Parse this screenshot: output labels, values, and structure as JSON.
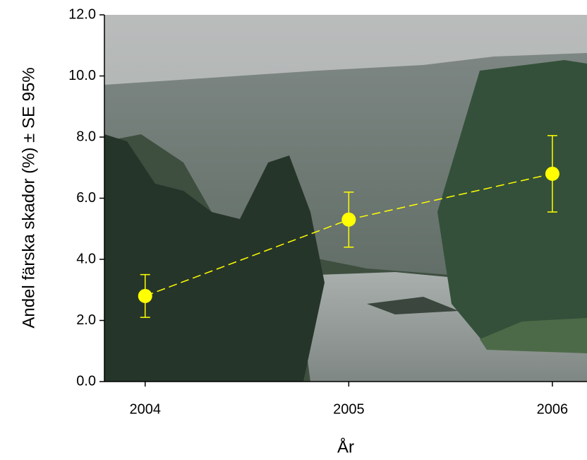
{
  "chart_data": {
    "type": "line",
    "x_label": "År",
    "y_label": "Andel färska skador (%) ± SE 95%",
    "x": [
      2004,
      2005,
      2006
    ],
    "series": [
      {
        "color": "#ffff00",
        "values": [
          2.8,
          5.3,
          6.8
        ],
        "errors": [
          0.7,
          0.9,
          1.25
        ]
      }
    ],
    "xlim": [
      2003.8,
      2006.17
    ],
    "xticks": [
      2004,
      2005,
      2006
    ],
    "ylim": [
      0,
      12
    ],
    "yticks": [
      {
        "value": 0,
        "label": "0.0"
      },
      {
        "value": 2,
        "label": "2.0"
      },
      {
        "value": 4,
        "label": "4.0"
      },
      {
        "value": 6,
        "label": "6.0"
      },
      {
        "value": 8,
        "label": "8.0"
      },
      {
        "value": 10,
        "label": "10.0"
      },
      {
        "value": 12,
        "label": "12.0"
      }
    ],
    "line_style": "dashed"
  }
}
